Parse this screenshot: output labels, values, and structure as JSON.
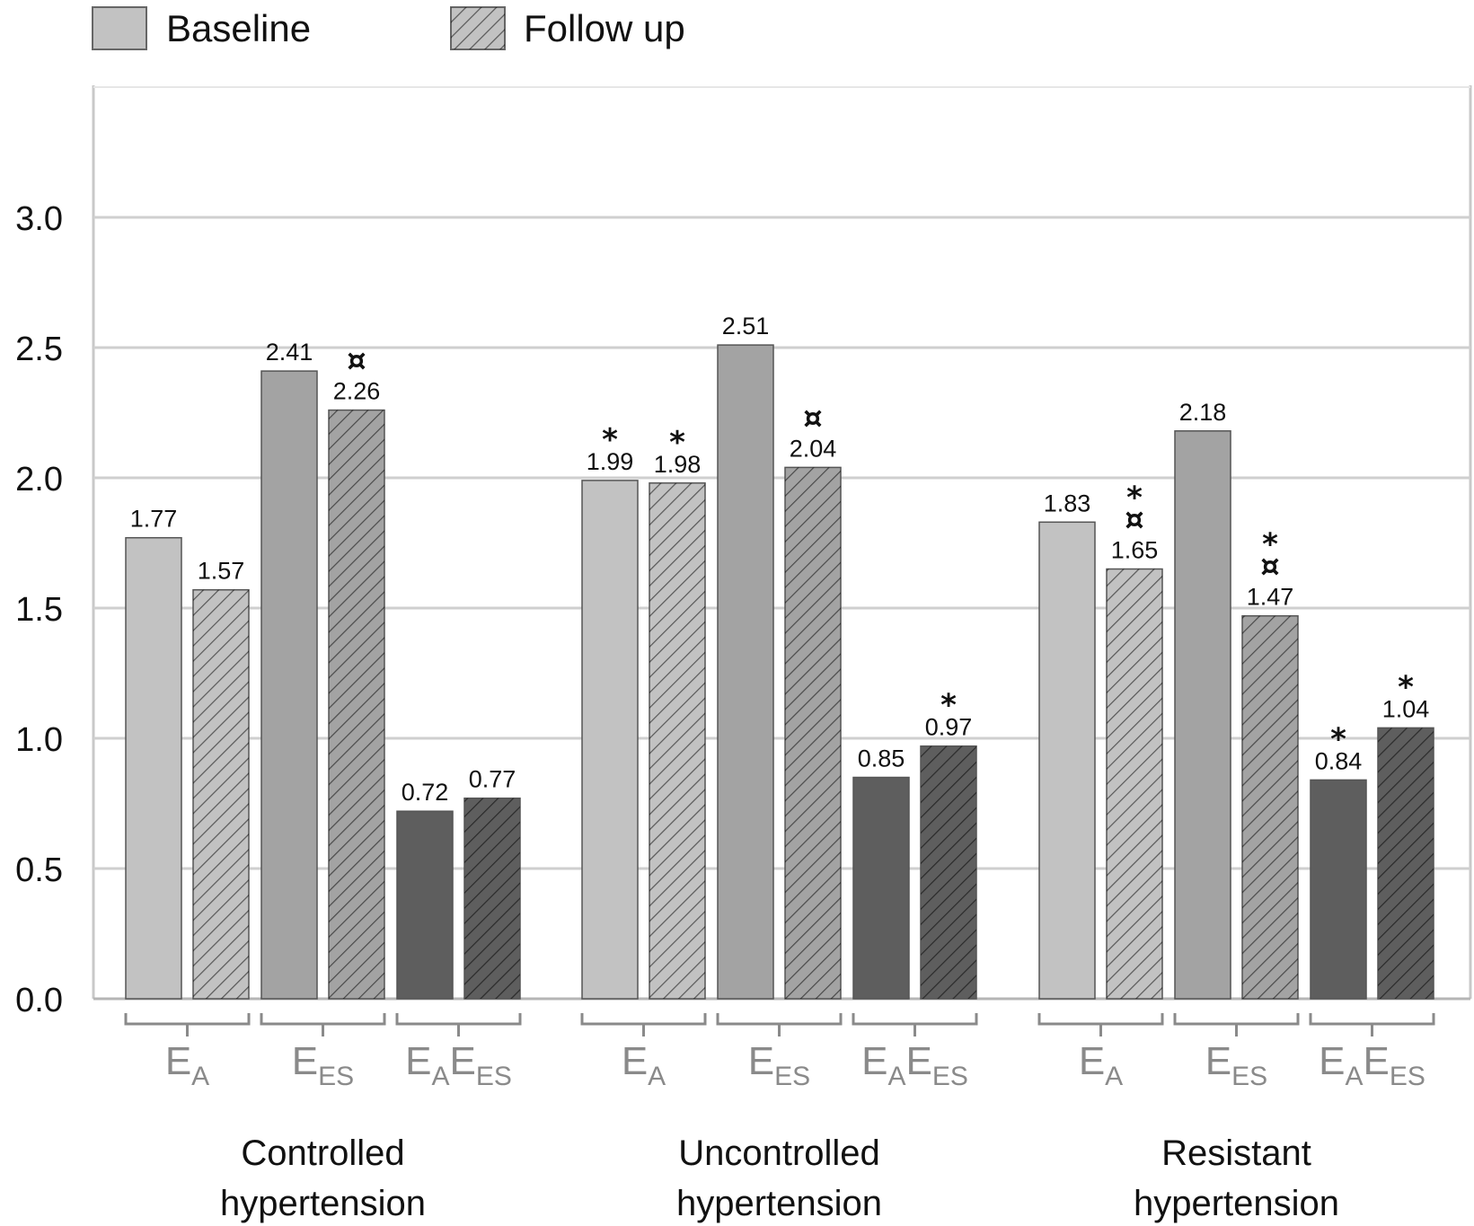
{
  "chart_data": {
    "type": "bar",
    "ylim": [
      0,
      3.5
    ],
    "yticks": [
      "0.0",
      "0.5",
      "1.0",
      "1.5",
      "2.0",
      "2.5",
      "3.0"
    ],
    "grid": true,
    "legend_position": "top-left",
    "legend": [
      {
        "label": "Baseline",
        "pattern": "solid"
      },
      {
        "label": "Follow up",
        "pattern": "hatched"
      }
    ],
    "metric_colors": {
      "EA": "#c2c2c2",
      "EES": "#a3a3a3",
      "EAEES": "#5e5e5e"
    },
    "groups": [
      {
        "label_lines": [
          "Controlled",
          "hypertension"
        ],
        "metrics": [
          {
            "key": "EA",
            "label": "E",
            "sub": "A",
            "bars": [
              {
                "series": "Baseline",
                "value": 1.77,
                "label": "1.77",
                "markers": []
              },
              {
                "series": "Follow up",
                "value": 1.57,
                "label": "1.57",
                "markers": []
              }
            ]
          },
          {
            "key": "EES",
            "label": "E",
            "sub": "ES",
            "bars": [
              {
                "series": "Baseline",
                "value": 2.41,
                "label": "2.41",
                "markers": []
              },
              {
                "series": "Follow up",
                "value": 2.26,
                "label": "2.26",
                "markers": [
                  "¤"
                ]
              }
            ]
          },
          {
            "key": "EAEES",
            "label": "E",
            "sub": "A",
            "label2": "E",
            "sub2": "ES",
            "bars": [
              {
                "series": "Baseline",
                "value": 0.72,
                "label": "0.72",
                "markers": []
              },
              {
                "series": "Follow up",
                "value": 0.77,
                "label": "0.77",
                "markers": []
              }
            ]
          }
        ]
      },
      {
        "label_lines": [
          "Uncontrolled",
          "hypertension"
        ],
        "metrics": [
          {
            "key": "EA",
            "label": "E",
            "sub": "A",
            "bars": [
              {
                "series": "Baseline",
                "value": 1.99,
                "label": "1.99",
                "markers": [
                  "*"
                ]
              },
              {
                "series": "Follow up",
                "value": 1.98,
                "label": "1.98",
                "markers": [
                  "*"
                ]
              }
            ]
          },
          {
            "key": "EES",
            "label": "E",
            "sub": "ES",
            "bars": [
              {
                "series": "Baseline",
                "value": 2.51,
                "label": "2.51",
                "markers": []
              },
              {
                "series": "Follow up",
                "value": 2.04,
                "label": "2.04",
                "markers": [
                  "¤"
                ]
              }
            ]
          },
          {
            "key": "EAEES",
            "label": "E",
            "sub": "A",
            "label2": "E",
            "sub2": "ES",
            "bars": [
              {
                "series": "Baseline",
                "value": 0.85,
                "label": "0.85",
                "markers": []
              },
              {
                "series": "Follow up",
                "value": 0.97,
                "label": "0.97",
                "markers": [
                  "*"
                ]
              }
            ]
          }
        ]
      },
      {
        "label_lines": [
          "Resistant",
          "hypertension"
        ],
        "metrics": [
          {
            "key": "EA",
            "label": "E",
            "sub": "A",
            "bars": [
              {
                "series": "Baseline",
                "value": 1.83,
                "label": "1.83",
                "markers": []
              },
              {
                "series": "Follow up",
                "value": 1.65,
                "label": "1.65",
                "markers": [
                  "*",
                  "¤"
                ]
              }
            ]
          },
          {
            "key": "EES",
            "label": "E",
            "sub": "ES",
            "bars": [
              {
                "series": "Baseline",
                "value": 2.18,
                "label": "2.18",
                "markers": []
              },
              {
                "series": "Follow up",
                "value": 1.47,
                "label": "1.47",
                "markers": [
                  "*",
                  "¤"
                ]
              }
            ]
          },
          {
            "key": "EAEES",
            "label": "E",
            "sub": "A",
            "label2": "E",
            "sub2": "ES",
            "bars": [
              {
                "series": "Baseline",
                "value": 0.84,
                "label": "0.84",
                "markers": [
                  "*"
                ]
              },
              {
                "series": "Follow up",
                "value": 1.04,
                "label": "1.04",
                "markers": [
                  "*"
                ]
              }
            ]
          }
        ]
      }
    ]
  }
}
